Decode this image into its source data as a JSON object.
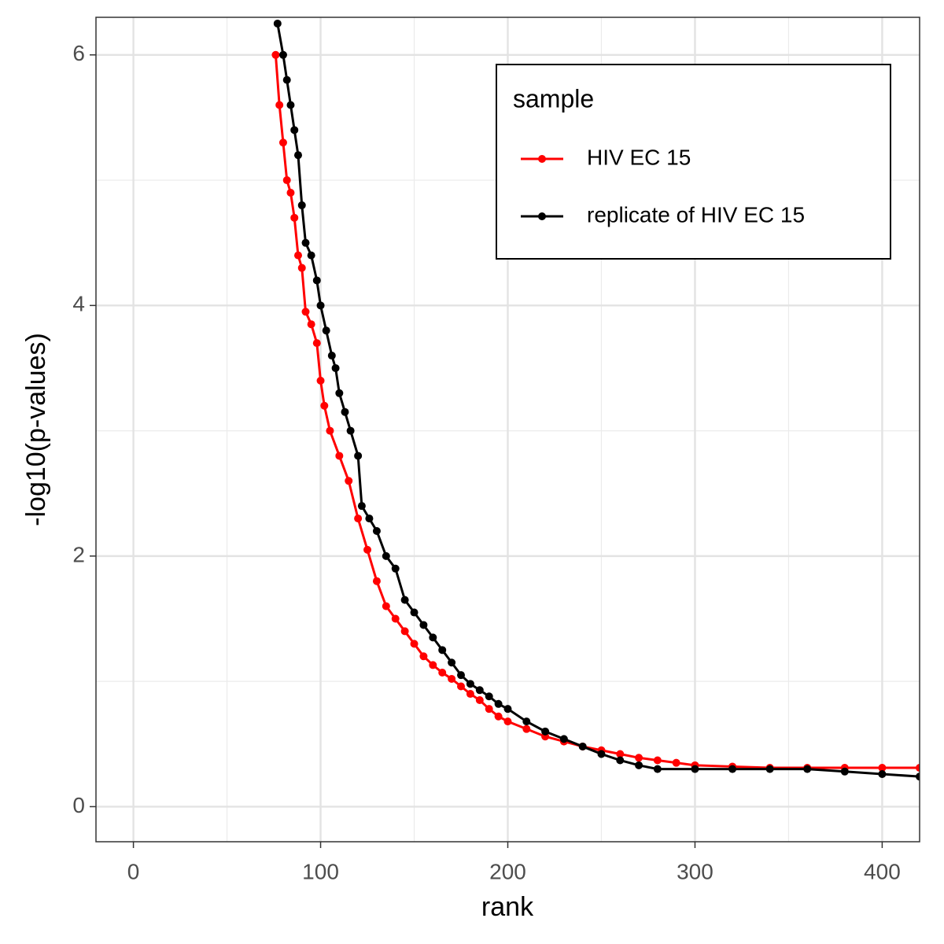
{
  "chart_data": {
    "type": "line",
    "x_label": "rank",
    "y_label": "-log10(p-values)",
    "legend_title": "sample",
    "legend_position": "top-right",
    "xlim": [
      -20,
      420
    ],
    "ylim": [
      -0.28,
      6.3
    ],
    "xticks": [
      0,
      100,
      200,
      300,
      400
    ],
    "yticks": [
      0,
      2,
      4,
      6
    ],
    "x_minor_grid": [
      50,
      150,
      250,
      350
    ],
    "y_minor_grid": [
      1,
      3,
      5
    ],
    "grid": true,
    "series": [
      {
        "name": "HIV EC 15",
        "color": "#ff0000",
        "x": [
          76,
          78,
          80,
          82,
          84,
          86,
          88,
          90,
          92,
          95,
          98,
          100,
          102,
          105,
          110,
          115,
          120,
          125,
          130,
          135,
          140,
          145,
          150,
          155,
          160,
          165,
          170,
          175,
          180,
          185,
          190,
          195,
          200,
          210,
          220,
          230,
          240,
          250,
          260,
          270,
          280,
          290,
          300,
          320,
          340,
          360,
          380,
          400,
          420
        ],
        "values": [
          6.0,
          5.6,
          5.3,
          5.0,
          4.9,
          4.7,
          4.4,
          4.3,
          3.95,
          3.85,
          3.7,
          3.4,
          3.2,
          3.0,
          2.8,
          2.6,
          2.3,
          2.05,
          1.8,
          1.6,
          1.5,
          1.4,
          1.3,
          1.2,
          1.13,
          1.07,
          1.02,
          0.96,
          0.9,
          0.85,
          0.78,
          0.72,
          0.68,
          0.62,
          0.56,
          0.52,
          0.48,
          0.45,
          0.42,
          0.39,
          0.37,
          0.35,
          0.33,
          0.32,
          0.31,
          0.31,
          0.31,
          0.31,
          0.31
        ]
      },
      {
        "name": "replicate of HIV EC 15",
        "color": "#000000",
        "x": [
          77,
          80,
          82,
          84,
          86,
          88,
          90,
          92,
          95,
          98,
          100,
          103,
          106,
          108,
          110,
          113,
          116,
          120,
          122,
          126,
          130,
          135,
          140,
          145,
          150,
          155,
          160,
          165,
          170,
          175,
          180,
          185,
          190,
          195,
          200,
          210,
          220,
          230,
          240,
          250,
          260,
          270,
          280,
          300,
          320,
          340,
          360,
          380,
          400,
          420
        ],
        "values": [
          6.25,
          6.0,
          5.8,
          5.6,
          5.4,
          5.2,
          4.8,
          4.5,
          4.4,
          4.2,
          4.0,
          3.8,
          3.6,
          3.5,
          3.3,
          3.15,
          3.0,
          2.8,
          2.4,
          2.3,
          2.2,
          2.0,
          1.9,
          1.65,
          1.55,
          1.45,
          1.35,
          1.25,
          1.15,
          1.05,
          0.98,
          0.93,
          0.88,
          0.82,
          0.78,
          0.68,
          0.6,
          0.54,
          0.48,
          0.42,
          0.37,
          0.33,
          0.3,
          0.3,
          0.3,
          0.3,
          0.3,
          0.28,
          0.26,
          0.24
        ]
      }
    ]
  }
}
